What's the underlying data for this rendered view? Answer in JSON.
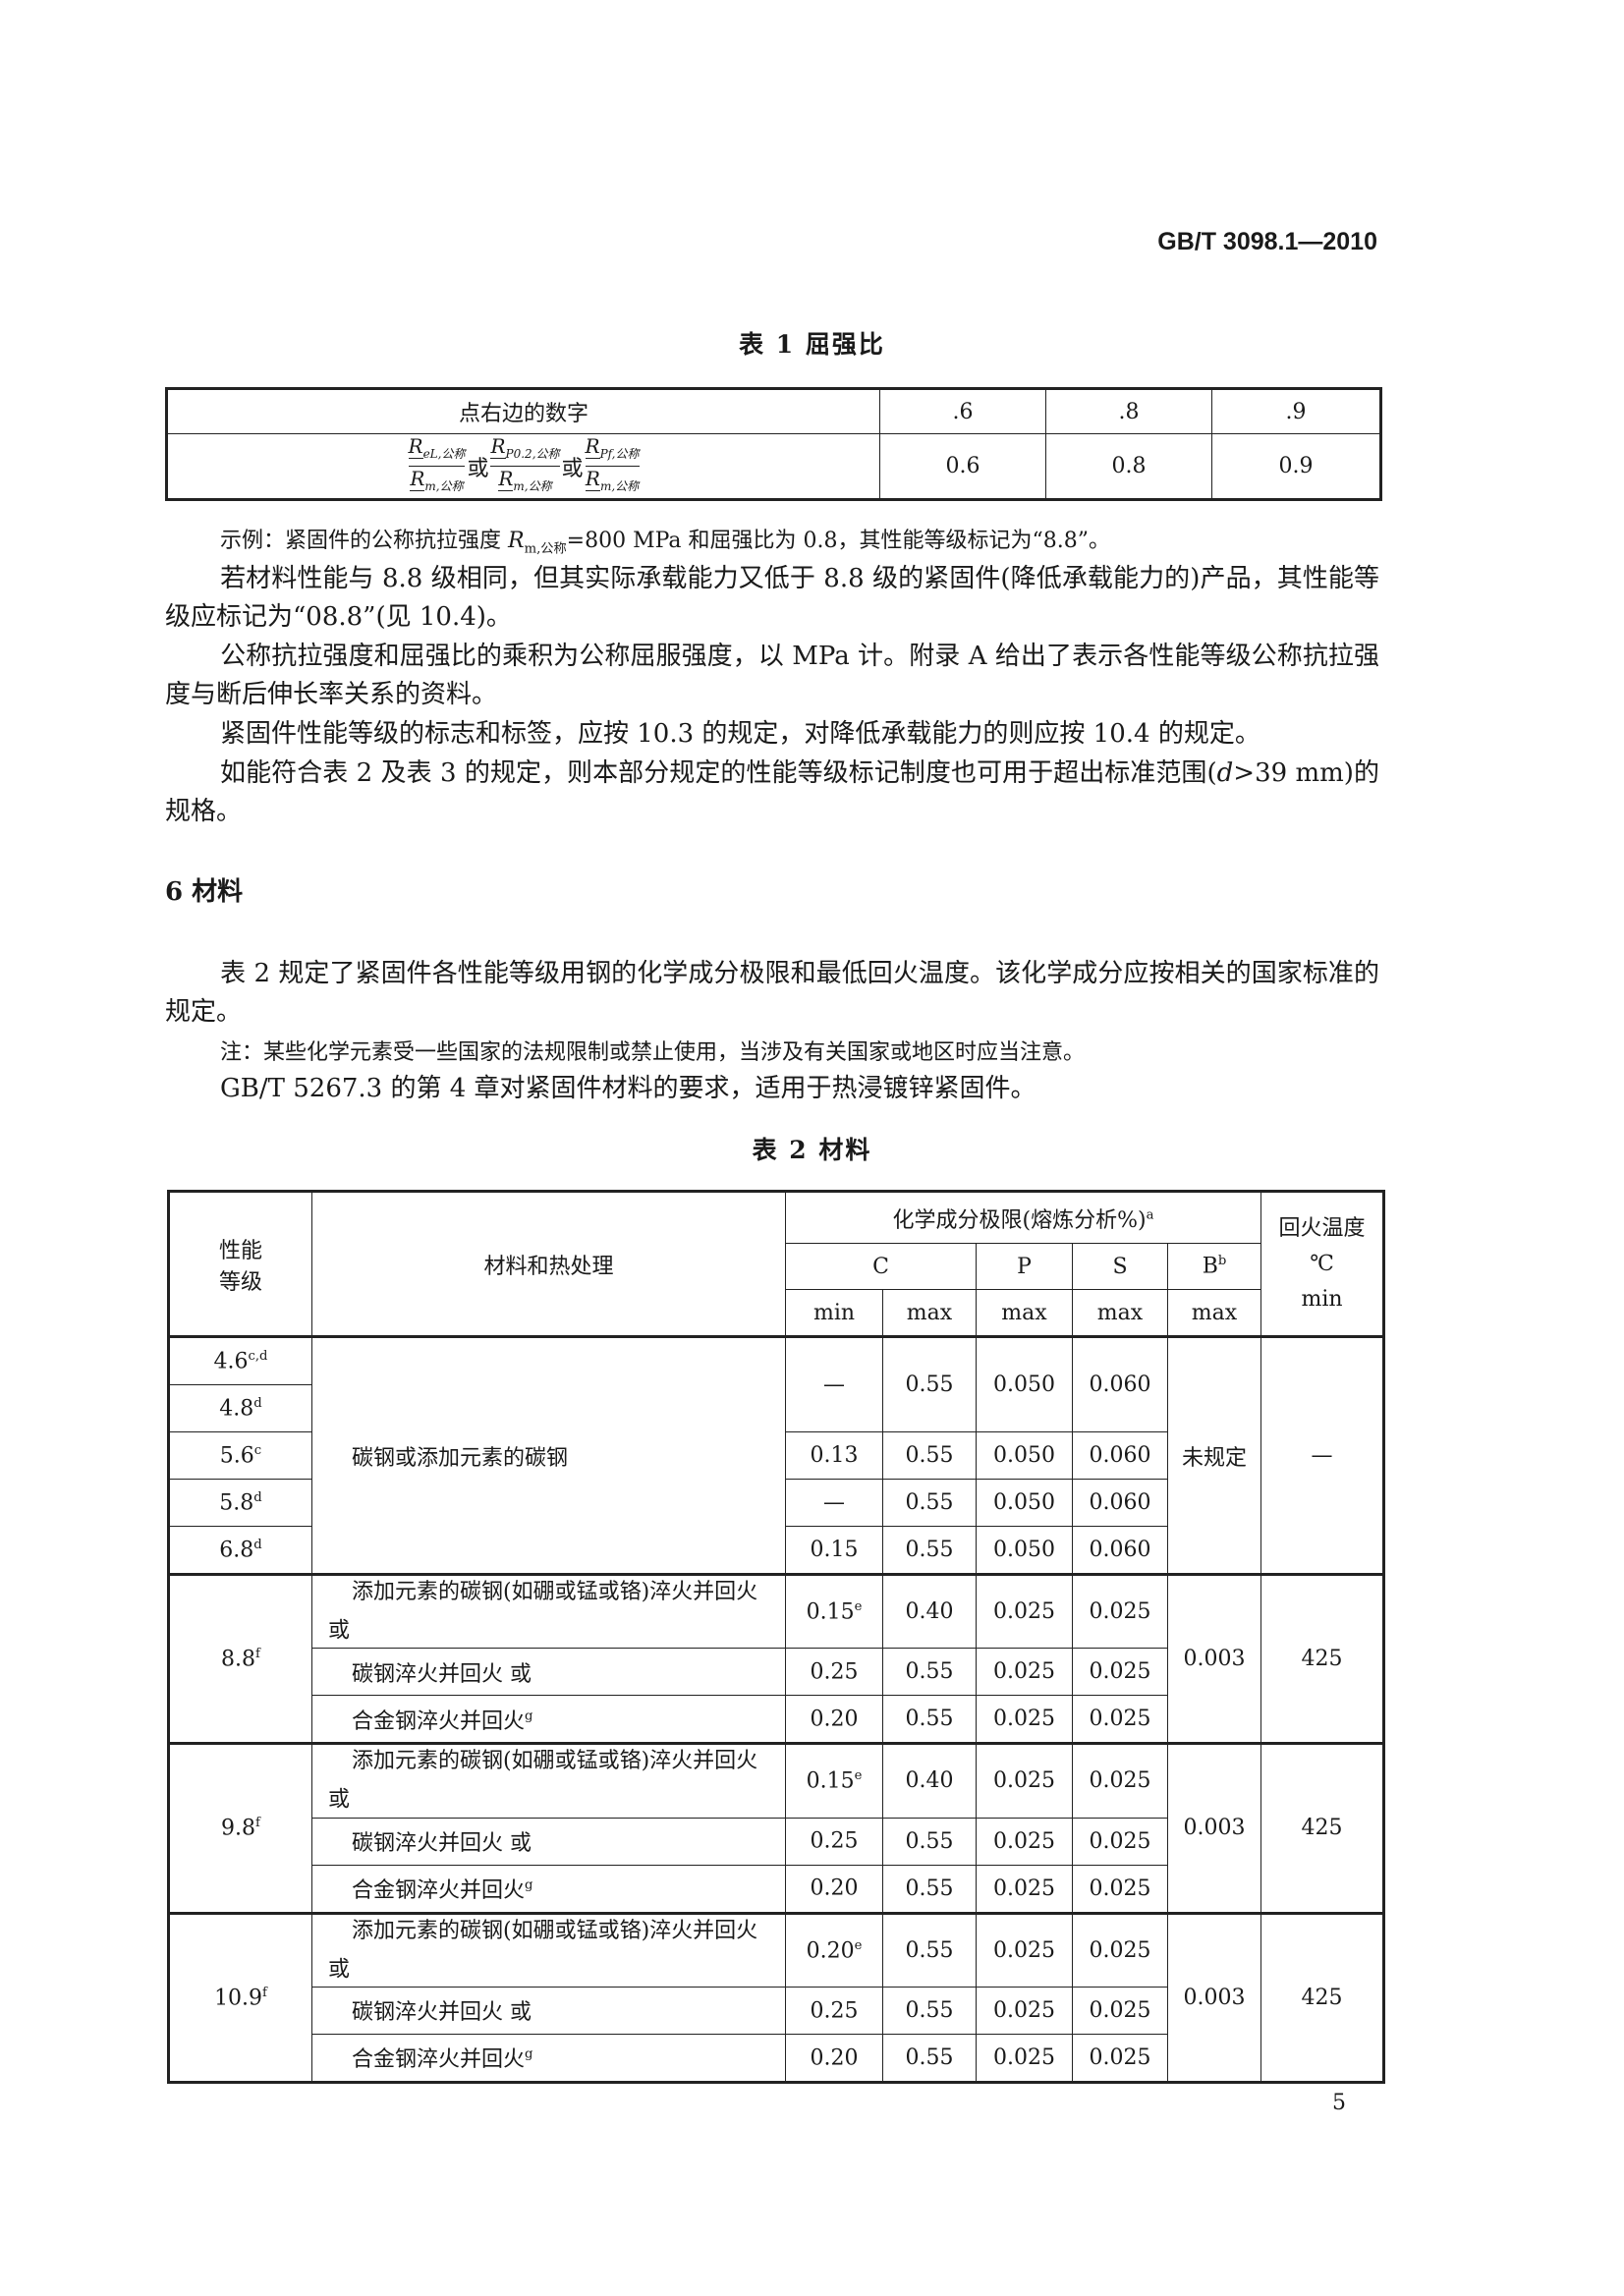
{
  "header": {
    "standard_number": "GB/T 3098.1—2010"
  },
  "table1": {
    "title": "表 1  屈强比",
    "row1": {
      "label": "点右边的数字",
      "values": [
        ".6",
        ".8",
        ".9"
      ]
    },
    "row2": {
      "formula": {
        "f1_num": "R",
        "f1_num_sub": "eL,公称",
        "f1_den": "R",
        "f1_den_sub": "m,公称",
        "or": "或",
        "f2_num": "R",
        "f2_num_sub": "P0.2,公称",
        "f2_den": "R",
        "f2_den_sub": "m,公称",
        "f3_num": "R",
        "f3_num_sub": "Pf,公称",
        "f3_den": "R",
        "f3_den_sub": "m,公称"
      },
      "values": [
        "0.6",
        "0.8",
        "0.9"
      ]
    }
  },
  "example": {
    "a": "示例：紧固件的公称抗拉强度 ",
    "r": "R",
    "r_sub": "m,公称",
    "b": "=800 MPa 和屈强比为 0.8，其性能等级标记为“8.8”。"
  },
  "paragraphs": [
    "若材料性能与 8.8 级相同，但其实际承载能力又低于 8.8 级的紧固件(降低承载能力的)产品，其性能等级应标记为“08.8”(见 10.4)。",
    "公称抗拉强度和屈强比的乘积为公称屈服强度，以 MPa 计。附录 A 给出了表示各性能等级公称抗拉强度与断后伸长率关系的资料。",
    "紧固件性能等级的标志和标签，应按 10.3 的规定，对降低承载能力的则应按 10.4 的规定。"
  ],
  "para_d": {
    "a": "如能符合表 2 及表 3 的规定，则本部分规定的性能等级标记制度也可用于超出标准范围(",
    "d": "d",
    "b": ">39 mm)的规格。"
  },
  "section6": {
    "heading": "6  材料",
    "para": "表 2 规定了紧固件各性能等级用钢的化学成分极限和最低回火温度。该化学成分应按相关的国家标准的规定。",
    "note": "注：某些化学元素受一些国家的法规限制或禁止使用，当涉及有关国家或地区时应当注意。",
    "para2": "GB/T 5267.3 的第 4 章对紧固件材料的要求，适用于热浸镀锌紧固件。"
  },
  "table2": {
    "title": "表 2  材料",
    "headers": {
      "grade": "性能等级",
      "material": "材料和热处理",
      "chem": "化学成分极限(熔炼分析%)",
      "chem_sup": "a",
      "temp": "回火温度",
      "temp_unit": "℃",
      "temp_min": "min",
      "c": "C",
      "p": "P",
      "s": "S",
      "b": "B",
      "b_sup": "b",
      "min": "min",
      "max": "max"
    },
    "group1": {
      "grades": [
        {
          "g": "4.6",
          "sup": "c,d"
        },
        {
          "g": "4.8",
          "sup": "d"
        },
        {
          "g": "5.6",
          "sup": "c"
        },
        {
          "g": "5.8",
          "sup": "d"
        },
        {
          "g": "6.8",
          "sup": "d"
        }
      ],
      "material": "碳钢或添加元素的碳钢",
      "rows": [
        {
          "c_min": "—",
          "c_max": "0.55",
          "p": "0.050",
          "s": "0.060"
        },
        {
          "c_min": "0.13",
          "c_max": "0.55",
          "p": "0.050",
          "s": "0.060"
        },
        {
          "c_min": "—",
          "c_max": "0.55",
          "p": "0.050",
          "s": "0.060"
        },
        {
          "c_min": "0.15",
          "c_max": "0.55",
          "p": "0.050",
          "s": "0.060"
        }
      ],
      "b": "未规定",
      "temp": "—"
    },
    "groups": [
      {
        "grade": "8.8",
        "sup": "f",
        "b": "0.003",
        "temp": "425",
        "rows": [
          {
            "material": "添加元素的碳钢(如硼或锰或铬)淬火并回火 或",
            "msup": "",
            "c_min": "0.15",
            "c_min_sup": "e",
            "c_max": "0.40",
            "p": "0.025",
            "s": "0.025"
          },
          {
            "material": "碳钢淬火并回火 或",
            "msup": "",
            "c_min": "0.25",
            "c_min_sup": "",
            "c_max": "0.55",
            "p": "0.025",
            "s": "0.025"
          },
          {
            "material": "合金钢淬火并回火",
            "msup": "g",
            "c_min": "0.20",
            "c_min_sup": "",
            "c_max": "0.55",
            "p": "0.025",
            "s": "0.025"
          }
        ]
      },
      {
        "grade": "9.8",
        "sup": "f",
        "b": "0.003",
        "temp": "425",
        "rows": [
          {
            "material": "添加元素的碳钢(如硼或锰或铬)淬火并回火 或",
            "msup": "",
            "c_min": "0.15",
            "c_min_sup": "e",
            "c_max": "0.40",
            "p": "0.025",
            "s": "0.025"
          },
          {
            "material": "碳钢淬火并回火 或",
            "msup": "",
            "c_min": "0.25",
            "c_min_sup": "",
            "c_max": "0.55",
            "p": "0.025",
            "s": "0.025"
          },
          {
            "material": "合金钢淬火并回火",
            "msup": "g",
            "c_min": "0.20",
            "c_min_sup": "",
            "c_max": "0.55",
            "p": "0.025",
            "s": "0.025"
          }
        ]
      },
      {
        "grade": "10.9",
        "sup": "f",
        "b": "0.003",
        "temp": "425",
        "rows": [
          {
            "material": "添加元素的碳钢(如硼或锰或铬)淬火并回火 或",
            "msup": "",
            "c_min": "0.20",
            "c_min_sup": "e",
            "c_max": "0.55",
            "p": "0.025",
            "s": "0.025"
          },
          {
            "material": "碳钢淬火并回火 或",
            "msup": "",
            "c_min": "0.25",
            "c_min_sup": "",
            "c_max": "0.55",
            "p": "0.025",
            "s": "0.025"
          },
          {
            "material": "合金钢淬火并回火",
            "msup": "g",
            "c_min": "0.20",
            "c_min_sup": "",
            "c_max": "0.55",
            "p": "0.025",
            "s": "0.025"
          }
        ]
      }
    ]
  },
  "page_number": "5"
}
